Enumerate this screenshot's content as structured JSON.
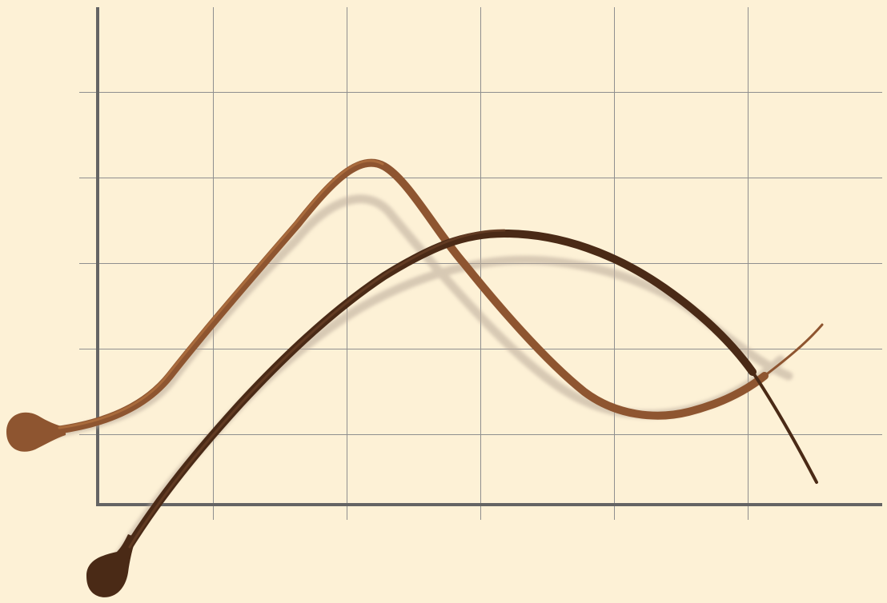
{
  "colors": {
    "background": "#FDF1D6",
    "grid": "#8F8F8F",
    "axis": "#646464",
    "curve_light": "#8E5530",
    "curve_light_highlight": "#B07040",
    "curve_dark": "#4A2A16",
    "curve_dark_highlight": "#6B4228",
    "shadow": "#B9A999"
  },
  "curves": [
    {
      "name": "light-brown-curve",
      "start_cap": "teardrop",
      "end": "tapered"
    },
    {
      "name": "dark-brown-curve",
      "start_cap": "teardrop",
      "end": "tapered"
    }
  ],
  "grid": {
    "show": true
  },
  "axes": {
    "show_x": true,
    "show_y": true,
    "labels": false
  }
}
